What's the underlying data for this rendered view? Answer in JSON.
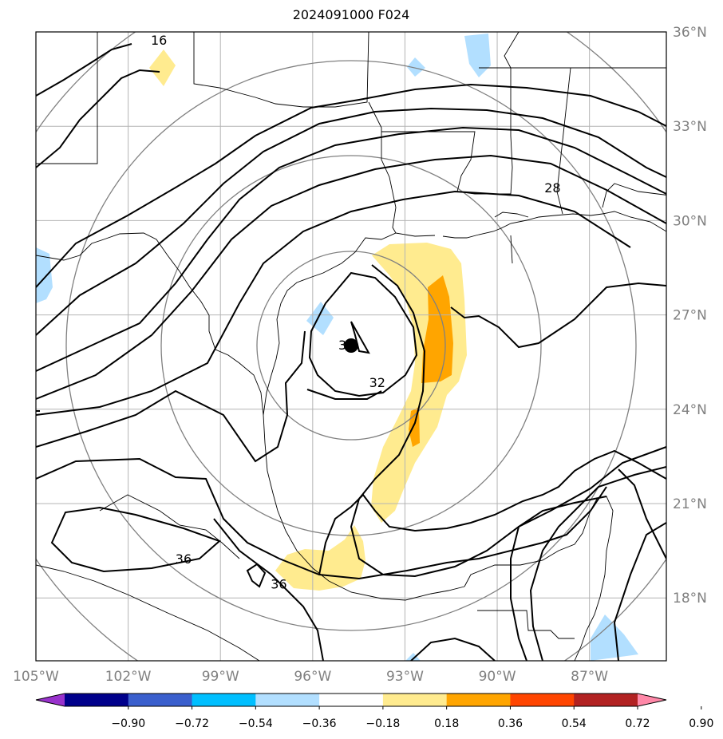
{
  "title": "2024091000 F024",
  "map": {
    "lon_range": [
      -105,
      -84.5
    ],
    "lat_range": [
      16,
      36
    ],
    "lat_ticks": [
      {
        "lat": 36,
        "label": "36°N"
      },
      {
        "lat": 33,
        "label": "33°N"
      },
      {
        "lat": 30,
        "label": "30°N"
      },
      {
        "lat": 27,
        "label": "27°N"
      },
      {
        "lat": 24,
        "label": "24°N"
      },
      {
        "lat": 21,
        "label": "21°N"
      },
      {
        "lat": 18,
        "label": "18°N"
      }
    ],
    "lon_ticks": [
      {
        "lon": -105,
        "label": "105°W"
      },
      {
        "lon": -102,
        "label": "102°W"
      },
      {
        "lon": -99,
        "label": "99°W"
      },
      {
        "lon": -96,
        "label": "96°W"
      },
      {
        "lon": -93,
        "label": "93°W"
      },
      {
        "lon": -90,
        "label": "90°W"
      },
      {
        "lon": -87,
        "label": "87°W"
      }
    ],
    "gridlines": true,
    "storm_center": {
      "lon": -95.0,
      "lat": 26.2,
      "marker": "filled-circle"
    },
    "range_rings": 4,
    "contour_labels": [
      {
        "text": "16",
        "lon": -101.0,
        "lat": 35.6
      },
      {
        "text": "28",
        "lon": -88.2,
        "lat": 30.9
      },
      {
        "text": "36",
        "lon": -94.9,
        "lat": 25.9
      },
      {
        "text": "32",
        "lon": -93.9,
        "lat": 24.7
      },
      {
        "text": "36",
        "lon": -100.2,
        "lat": 19.1
      },
      {
        "text": "36",
        "lon": -97.1,
        "lat": 18.3
      }
    ]
  },
  "colorbar": {
    "colors": [
      "#9932CC",
      "#00008B",
      "#3A5FCD",
      "#00BFFF",
      "#B2DFFF",
      "#FFFFFF",
      "#FFEB8F",
      "#FFA500",
      "#FF4500",
      "#B22222",
      "#FF88A8"
    ],
    "tick_labels": [
      "−0.90",
      "−0.72",
      "−0.54",
      "−0.36",
      "−0.18",
      "0.18",
      "0.36",
      "0.54",
      "0.72",
      "0.90"
    ],
    "extend": "both"
  }
}
